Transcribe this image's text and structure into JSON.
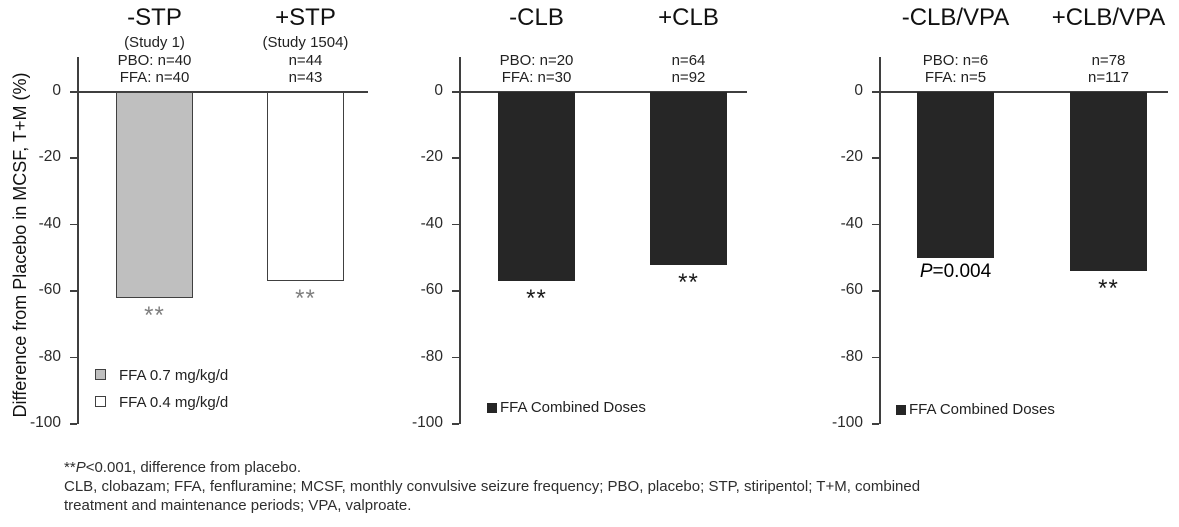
{
  "chart_data": {
    "type": "bar",
    "title": "",
    "ylabel": "Difference from Placebo in MCSF, T+M (%)",
    "ylim": [
      -100,
      0
    ],
    "yticks": [
      0,
      -20,
      -40,
      -60,
      -80,
      -100
    ],
    "grid": false,
    "panels": [
      {
        "name": "STP",
        "groups": [
          {
            "title": "-STP",
            "subtitle": "(Study 1)",
            "n_labels": [
              "PBO:  n=40",
              "FFA:  n=40"
            ],
            "series": "FFA 0.7 mg/kg/d",
            "value": -62,
            "fill": "#bfbfbf",
            "border": "#404040",
            "annotation": {
              "text": "**",
              "color": "#7f7f7f"
            }
          },
          {
            "title": "+STP",
            "subtitle": "(Study 1504)",
            "n_labels": [
              "n=44",
              "n=43"
            ],
            "series": "FFA 0.4 mg/kg/d",
            "value": -57,
            "fill": "#ffffff",
            "border": "#404040",
            "annotation": {
              "text": "**",
              "color": "#7f7f7f"
            }
          }
        ],
        "legend": [
          {
            "label": "FFA 0.7 mg/kg/d",
            "fill": "#bfbfbf",
            "border": "#404040"
          },
          {
            "label": "FFA 0.4 mg/kg/d",
            "fill": "#ffffff",
            "border": "#404040"
          }
        ]
      },
      {
        "name": "CLB",
        "groups": [
          {
            "title": "-CLB",
            "subtitle": "",
            "n_labels": [
              "PBO: n=20",
              "FFA: n=30"
            ],
            "series": "FFA Combined Doses",
            "value": -57,
            "fill": "#262626",
            "border": "",
            "annotation": {
              "text": "**",
              "color": "#1a1a1a"
            }
          },
          {
            "title": "+CLB",
            "subtitle": "",
            "n_labels": [
              "n=64",
              "n=92"
            ],
            "series": "FFA Combined Doses",
            "value": -52,
            "fill": "#262626",
            "border": "",
            "annotation": {
              "text": "**",
              "color": "#1a1a1a"
            }
          }
        ],
        "legend": [
          {
            "label": "FFA Combined Doses",
            "fill": "#262626",
            "border": "#262626"
          }
        ]
      },
      {
        "name": "CLB/VPA",
        "groups": [
          {
            "title": "-CLB/VPA",
            "subtitle": "",
            "n_labels": [
              "PBO: n=6",
              "FFA: n=5"
            ],
            "series": "FFA Combined Doses",
            "value": -50,
            "fill": "#262626",
            "border": "",
            "annotation": {
              "italic": "P",
              "rest": "=0.004",
              "color": "#000000"
            }
          },
          {
            "title": "+CLB/VPA",
            "subtitle": "",
            "n_labels": [
              "n=78",
              "n=117"
            ],
            "series": "FFA Combined Doses",
            "value": -54,
            "fill": "#262626",
            "border": "",
            "annotation": {
              "text": "**",
              "color": "#1a1a1a"
            }
          }
        ],
        "legend": [
          {
            "label": "FFA Combined Doses",
            "fill": "#262626",
            "border": "#262626"
          }
        ]
      }
    ]
  },
  "footnotes": {
    "line1": {
      "asterisks": "**",
      "italic": "P",
      "rest": "<0.001, difference from placebo."
    },
    "line2": "CLB, clobazam; FFA, fenfluramine;  MCSF, monthly  convulsive  seizure  frequency;  PBO, placebo; STP, stiripentol; T+M,  combined",
    "line3": "treatment  and  maintenance  periods; VPA, valproate."
  }
}
